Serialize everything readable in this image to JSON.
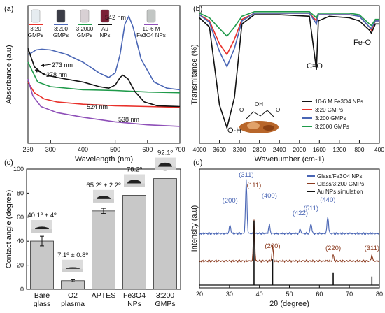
{
  "figure": {
    "panels": [
      {
        "letter": "(a)"
      },
      {
        "letter": "(b)"
      },
      {
        "letter": "(c)"
      },
      {
        "letter": "(d)"
      }
    ]
  },
  "chart_data": [
    {
      "panel": "(a)",
      "type": "line",
      "xlabel": "Wavelength (nm)",
      "ylabel": "Absorbance (a.u)",
      "xlim": [
        230,
        700
      ],
      "xticks": [
        230,
        300,
        400,
        500,
        600,
        700
      ],
      "series": [
        {
          "name": "3:20 GMPs",
          "color": "#e8302a",
          "points": [
            [
              230,
              0.4
            ],
            [
              250,
              0.33
            ],
            [
              280,
              0.29
            ],
            [
              320,
              0.27
            ],
            [
              400,
              0.255
            ],
            [
              500,
              0.245
            ],
            [
              600,
              0.24
            ],
            [
              700,
              0.235
            ]
          ]
        },
        {
          "name": "3:200 GMPs",
          "color": "#4a66b5",
          "points": [
            [
              230,
              0.58
            ],
            [
              240,
              0.59
            ],
            [
              255,
              0.61
            ],
            [
              273,
              0.615
            ],
            [
              300,
              0.61
            ],
            [
              350,
              0.58
            ],
            [
              400,
              0.53
            ],
            [
              450,
              0.46
            ],
            [
              480,
              0.43
            ],
            [
              500,
              0.46
            ],
            [
              515,
              0.58
            ],
            [
              530,
              0.78
            ],
            [
              542,
              0.83
            ],
            [
              555,
              0.76
            ],
            [
              580,
              0.55
            ],
            [
              620,
              0.4
            ],
            [
              660,
              0.36
            ],
            [
              700,
              0.35
            ]
          ]
        },
        {
          "name": "3:2000 GMPs",
          "color": "#1f9a4a",
          "points": [
            [
              230,
              0.53
            ],
            [
              260,
              0.4
            ],
            [
              300,
              0.37
            ],
            [
              400,
              0.35
            ],
            [
              500,
              0.345
            ],
            [
              600,
              0.335
            ],
            [
              700,
              0.33
            ]
          ]
        },
        {
          "name": "Au NPs",
          "color": "#111111",
          "points": [
            [
              230,
              0.62
            ],
            [
              250,
              0.5
            ],
            [
              278,
              0.45
            ],
            [
              320,
              0.43
            ],
            [
              400,
              0.4
            ],
            [
              450,
              0.37
            ],
            [
              480,
              0.36
            ],
            [
              500,
              0.38
            ],
            [
              515,
              0.43
            ],
            [
              524,
              0.445
            ],
            [
              540,
              0.42
            ],
            [
              560,
              0.34
            ],
            [
              590,
              0.27
            ],
            [
              630,
              0.245
            ],
            [
              700,
              0.24
            ]
          ]
        },
        {
          "name": "10-6 M Fe3O4 NPs",
          "color": "#8e4fb8",
          "points": [
            [
              230,
              0.42
            ],
            [
              245,
              0.31
            ],
            [
              270,
              0.24
            ],
            [
              320,
              0.2
            ],
            [
              400,
              0.17
            ],
            [
              500,
              0.14
            ],
            [
              600,
              0.12
            ],
            [
              700,
              0.11
            ]
          ]
        }
      ],
      "annotations": [
        "542 nm",
        "273 nm",
        "278 nm",
        "524 nm",
        "538 nm"
      ],
      "vial_labels": [
        "3:20 GMPs",
        "3:200 GMPs",
        "3:2000 GMPs",
        "Au NPs",
        "10-6 M Fe3O4 NPs"
      ]
    },
    {
      "panel": "(b)",
      "type": "line",
      "xlabel": "Wavenumber (cm-1)",
      "ylabel": "Transmitance (%)",
      "xlim": [
        4000,
        400
      ],
      "xticks": [
        4000,
        3600,
        3200,
        2800,
        2400,
        2000,
        1600,
        1200,
        800,
        400
      ],
      "series": [
        {
          "name": "10-6 M Fe3O4 NPs",
          "color": "#111111",
          "points": [
            [
              4000,
              0.08
            ],
            [
              3800,
              0.14
            ],
            [
              3600,
              0.65
            ],
            [
              3450,
              0.8
            ],
            [
              3300,
              0.6
            ],
            [
              3150,
              0.12
            ],
            [
              2900,
              0.06
            ],
            [
              2400,
              0.06
            ],
            [
              1800,
              0.07
            ],
            [
              1660,
              0.42
            ],
            [
              1620,
              0.1
            ],
            [
              1400,
              0.07
            ],
            [
              1000,
              0.08
            ],
            [
              800,
              0.1
            ],
            [
              600,
              0.16
            ],
            [
              560,
              0.18
            ],
            [
              480,
              0.12
            ],
            [
              400,
              0.12
            ]
          ]
        },
        {
          "name": "3:20 GMPs",
          "color": "#e8302a",
          "points": [
            [
              4000,
              0.06
            ],
            [
              3800,
              0.1
            ],
            [
              3600,
              0.25
            ],
            [
              3450,
              0.32
            ],
            [
              3300,
              0.22
            ],
            [
              3150,
              0.09
            ],
            [
              2900,
              0.05
            ],
            [
              2400,
              0.05
            ],
            [
              1800,
              0.05
            ],
            [
              1660,
              0.1
            ],
            [
              1620,
              0.06
            ],
            [
              1000,
              0.06
            ],
            [
              800,
              0.07
            ],
            [
              600,
              0.14
            ],
            [
              560,
              0.16
            ],
            [
              480,
              0.1
            ],
            [
              400,
              0.1
            ]
          ]
        },
        {
          "name": "3:200 GMPs",
          "color": "#4a66b5",
          "points": [
            [
              4000,
              0.06
            ],
            [
              3800,
              0.11
            ],
            [
              3600,
              0.3
            ],
            [
              3450,
              0.4
            ],
            [
              3300,
              0.28
            ],
            [
              3150,
              0.1
            ],
            [
              2900,
              0.05
            ],
            [
              2400,
              0.05
            ],
            [
              1800,
              0.05
            ],
            [
              1660,
              0.12
            ],
            [
              1620,
              0.06
            ],
            [
              1000,
              0.06
            ],
            [
              800,
              0.07
            ],
            [
              600,
              0.14
            ],
            [
              560,
              0.15
            ],
            [
              480,
              0.1
            ],
            [
              400,
              0.1
            ]
          ]
        },
        {
          "name": "3:2000 GMPs",
          "color": "#1f9a4a",
          "points": [
            [
              4000,
              0.05
            ],
            [
              3800,
              0.08
            ],
            [
              3600,
              0.15
            ],
            [
              3450,
              0.2
            ],
            [
              3300,
              0.14
            ],
            [
              3150,
              0.07
            ],
            [
              2900,
              0.04
            ],
            [
              2400,
              0.04
            ],
            [
              1800,
              0.04
            ],
            [
              1660,
              0.08
            ],
            [
              1620,
              0.05
            ],
            [
              1000,
              0.05
            ],
            [
              800,
              0.06
            ],
            [
              600,
              0.12
            ],
            [
              560,
              0.13
            ],
            [
              480,
              0.09
            ],
            [
              400,
              0.09
            ]
          ]
        }
      ],
      "annotations": [
        "O-H",
        "C=O",
        "Fe-O"
      ]
    },
    {
      "panel": "(c)",
      "type": "bar",
      "ylabel": "Contact angle (degree)",
      "ylim": [
        0,
        100
      ],
      "yticks": [
        0,
        20,
        40,
        60,
        80,
        100
      ],
      "categories": [
        "Bare glass",
        "O2 plasma",
        "APTES",
        "Fe3O4 NPs",
        "3:200 GMPs"
      ],
      "values": [
        40.1,
        7.1,
        65.2,
        78.2,
        92.1
      ],
      "errors": [
        4,
        0.8,
        2.2,
        0,
        0
      ],
      "value_labels": [
        "40.1º ± 4º",
        "7.1º ± 0.8º",
        "65.2º ± 2.2º",
        "78.2º",
        "92.1º"
      ]
    },
    {
      "panel": "(d)",
      "type": "line",
      "xlabel": "2θ (degree)",
      "ylabel": "Intensity (a.u)",
      "xlim": [
        20,
        80
      ],
      "xticks": [
        20,
        30,
        40,
        50,
        60,
        70,
        80
      ],
      "series": [
        {
          "name": "Glass/Fe3O4 NPs",
          "color": "#4a66b5",
          "peaks": [
            [
              30.2,
              0.1
            ],
            [
              35.6,
              0.62
            ],
            [
              43.3,
              0.1
            ],
            [
              53.6,
              0.05
            ],
            [
              57.2,
              0.12
            ],
            [
              62.8,
              0.2
            ]
          ],
          "offset": 0.6
        },
        {
          "name": "Glass/3:200 GMPs",
          "color": "#8b3a1e",
          "peaks": [
            [
              38.2,
              0.48
            ],
            [
              44.4,
              0.18
            ],
            [
              64.6,
              0.07
            ],
            [
              77.5,
              0.07
            ]
          ],
          "offset": 0.28
        },
        {
          "name": "Au NPs simulation",
          "color": "#111111",
          "peaks": [
            [
              38.2,
              0.75
            ],
            [
              44.4,
              0.3
            ],
            [
              64.6,
              0.14
            ],
            [
              77.5,
              0.1
            ]
          ],
          "offset": 0.0
        }
      ],
      "peak_labels_blue": [
        "(200)",
        "(311)",
        "(400)",
        "(422)",
        "(511)",
        "(440)"
      ],
      "peak_labels_brown": [
        "(111)",
        "(200)",
        "(220)",
        "(311)"
      ]
    }
  ]
}
